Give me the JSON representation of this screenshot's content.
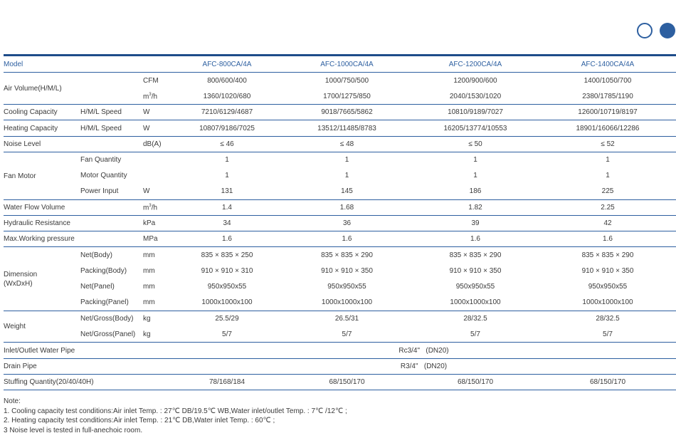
{
  "header": {
    "label": "Model",
    "models": [
      "AFC-800CA/4A",
      "AFC-1000CA/4A",
      "AFC-1200CA/4A",
      "AFC-1400CA/4A"
    ]
  },
  "rows": [
    {
      "label": "Air Volume(H/M/L)",
      "sub": "",
      "unit": "CFM",
      "values": [
        "800/600/400",
        "1000/750/500",
        "1200/900/600",
        "1400/1050/700"
      ]
    },
    {
      "label": "",
      "sub": "",
      "unit": "m³/h",
      "values": [
        "1360/1020/680",
        "1700/1275/850",
        "2040/1530/1020",
        "2380/1785/1190"
      ]
    },
    {
      "label": "Cooling Capacity",
      "sub": "H/M/L Speed",
      "unit": "W",
      "values": [
        "7210/6129/4687",
        "9018/7665/5862",
        "10810/9189/7027",
        "12600/10719/8197"
      ]
    },
    {
      "label": "Heating Capacity",
      "sub": "H/M/L Speed",
      "unit": "W",
      "values": [
        "10807/9186/7025",
        "13512/11485/8783",
        "16205/13774/10553",
        "18901/16066/12286"
      ]
    },
    {
      "label": "Noise Level",
      "sub": "",
      "unit": "dB(A)",
      "values": [
        "≤ 46",
        "≤ 48",
        "≤ 50",
        "≤ 52"
      ]
    },
    {
      "label": "Fan Motor",
      "sub": "Fan Quantity",
      "unit": "",
      "values": [
        "1",
        "1",
        "1",
        "1"
      ]
    },
    {
      "label": "",
      "sub": "Motor Quantity",
      "unit": "",
      "values": [
        "1",
        "1",
        "1",
        "1"
      ]
    },
    {
      "label": "",
      "sub": "Power Input",
      "unit": "W",
      "values": [
        "131",
        "145",
        "186",
        "225"
      ]
    },
    {
      "label": "Water Flow Volume",
      "sub": "",
      "unit": "m³/h",
      "values": [
        "1.4",
        "1.68",
        "1.82",
        "2.25"
      ]
    },
    {
      "label": "Hydraulic Resistance",
      "sub": "",
      "unit": "kPa",
      "values": [
        "34",
        "36",
        "39",
        "42"
      ]
    },
    {
      "label": "Max.Working pressure",
      "sub": "",
      "unit": "MPa",
      "values": [
        "1.6",
        "1.6",
        "1.6",
        "1.6"
      ]
    },
    {
      "label": "Dimension (WxDxH)",
      "sub": "Net(Body)",
      "unit": "mm",
      "values": [
        "835 × 835 × 250",
        "835 × 835 × 290",
        "835 × 835 × 290",
        "835 × 835 × 290"
      ]
    },
    {
      "label": "",
      "sub": "Packing(Body)",
      "unit": "mm",
      "values": [
        "910 × 910 × 310",
        "910 × 910 × 350",
        "910 × 910 × 350",
        "910 × 910 × 350"
      ]
    },
    {
      "label": "",
      "sub": "Net(Panel)",
      "unit": "mm",
      "values": [
        "950x950x55",
        "950x950x55",
        "950x950x55",
        "950x950x55"
      ]
    },
    {
      "label": "",
      "sub": "Packing(Panel)",
      "unit": "mm",
      "values": [
        "1000x1000x100",
        "1000x1000x100",
        "1000x1000x100",
        "1000x1000x100"
      ]
    },
    {
      "label": "Weight",
      "sub": "Net/Gross(Body)",
      "unit": "kg",
      "values": [
        "25.5/29",
        "26.5/31",
        "28/32.5",
        "28/32.5"
      ]
    },
    {
      "label": "",
      "sub": "Net/Gross(Panel)",
      "unit": "kg",
      "values": [
        "5/7",
        "5/7",
        "5/7",
        "5/7"
      ]
    },
    {
      "label": "Inlet/Outlet Water Pipe",
      "sub": "",
      "unit": "",
      "value": "Rc3/4\"   (DN20)"
    },
    {
      "label": "Drain Pipe",
      "sub": "",
      "unit": "",
      "value": "R3/4\"   (DN20)"
    },
    {
      "label": "Stuffing Quantity(20/40/40H)",
      "sub": "",
      "unit": "",
      "values": [
        "78/168/184",
        "68/150/170",
        "68/150/170",
        "68/150/170"
      ]
    }
  ],
  "notes": [
    "Note:",
    "1. Cooling capacity test conditions:Air inlet Temp. : 27℃ DB/19.5℃ WB,Water inlet/outlet Temp. : 7℃ /12℃ ;",
    "2. Heating capacity test conditions:Air inlet Temp. : 21℃ DB,Water inlet Temp. : 60℃ ;",
    "3  Noise level is tested in full-anechoic room."
  ],
  "colors": {
    "accent": "#2d5fa0",
    "text": "#3a3a3a"
  }
}
